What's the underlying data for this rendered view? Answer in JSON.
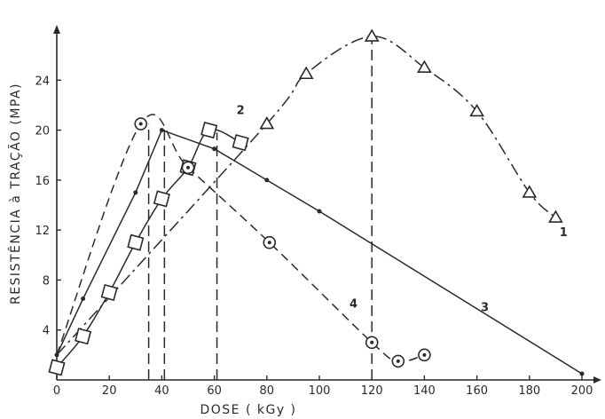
{
  "chart_data": {
    "type": "line",
    "title": "",
    "xlabel": "DOSE ( kGy )",
    "ylabel": "RESISTÊNCIA à TRAÇÃO (MPA)",
    "xlim": [
      0,
      200
    ],
    "ylim": [
      0,
      28
    ],
    "x_ticks": [
      0,
      20,
      40,
      60,
      80,
      100,
      120,
      140,
      160,
      180,
      200
    ],
    "y_ticks": [
      4,
      8,
      12,
      16,
      20,
      24
    ],
    "grid": false,
    "series": [
      {
        "name": "1",
        "marker": "triangle",
        "line": "dash-dot",
        "points": [
          [
            0,
            2
          ],
          [
            80,
            20.5
          ],
          [
            95,
            24.5
          ],
          [
            120,
            27.5
          ],
          [
            140,
            25
          ],
          [
            160,
            21.5
          ],
          [
            180,
            15
          ],
          [
            190,
            13
          ]
        ]
      },
      {
        "name": "2",
        "marker": "square",
        "line": "solid",
        "points": [
          [
            0,
            1
          ],
          [
            10,
            3.5
          ],
          [
            20,
            7
          ],
          [
            30,
            11
          ],
          [
            40,
            14.5
          ],
          [
            50,
            17
          ],
          [
            58,
            20
          ],
          [
            70,
            19
          ]
        ]
      },
      {
        "name": "3",
        "marker": "dot",
        "line": "solid",
        "points": [
          [
            0,
            2
          ],
          [
            10,
            6.5
          ],
          [
            30,
            15
          ],
          [
            40,
            20
          ],
          [
            60,
            18.5
          ],
          [
            80,
            16
          ],
          [
            100,
            13.5
          ],
          [
            200,
            0.5
          ]
        ]
      },
      {
        "name": "4",
        "marker": "circle-dot",
        "line": "dashed",
        "points": [
          [
            0,
            2
          ],
          [
            32,
            20.5
          ],
          [
            50,
            17
          ],
          [
            81,
            11
          ],
          [
            120,
            3
          ],
          [
            130,
            1.5
          ],
          [
            140,
            2
          ]
        ]
      }
    ],
    "reference_lines_x": [
      35,
      41,
      61,
      120
    ]
  }
}
